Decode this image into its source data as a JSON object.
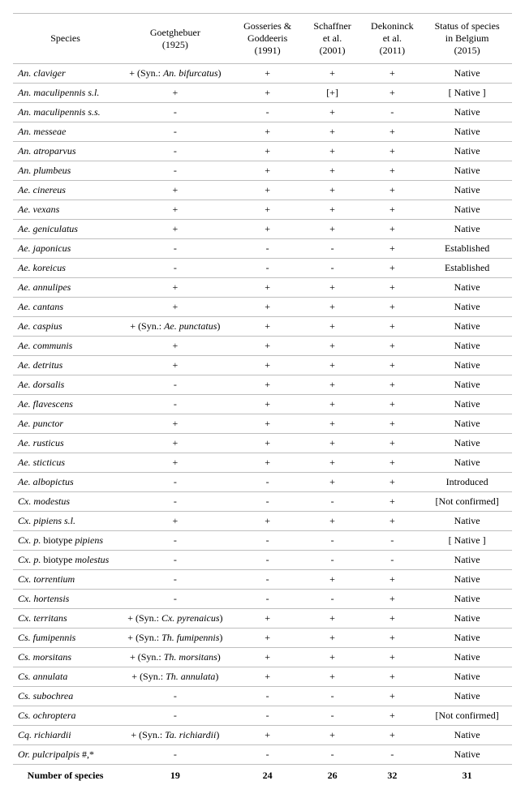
{
  "columns": {
    "species": "Species",
    "goetghebuer_l1": "Goetghebuer",
    "goetghebuer_l2": "(1925)",
    "gosseries_l1": "Gosseries &",
    "gosseries_l2": "Goddeeris",
    "gosseries_l3": "(1991)",
    "schaffner_l1": "Schaffner",
    "schaffner_l2": "et al.",
    "schaffner_l3": "(2001)",
    "dekoninck_l1": "Dekoninck",
    "dekoninck_l2": "et al.",
    "dekoninck_l3": "(2011)",
    "status_l1": "Status of species",
    "status_l2": "in Belgium",
    "status_l3": "(2015)"
  },
  "rows": [
    {
      "species": "An. claviger",
      "goet": "+ (Syn.: An. bifurcatus)",
      "goss": "+",
      "schaf": "+",
      "dekon": "+",
      "status": "Native"
    },
    {
      "species": "An. maculipennis s.l.",
      "goet": "+",
      "goss": "+",
      "schaf": "[+]",
      "dekon": "+",
      "status": "[ Native ]"
    },
    {
      "species": "An. maculipennis s.s.",
      "goet": "-",
      "goss": "-",
      "schaf": "+",
      "dekon": "-",
      "status": "Native"
    },
    {
      "species": "An. messeae",
      "goet": "-",
      "goss": "+",
      "schaf": "+",
      "dekon": "+",
      "status": "Native"
    },
    {
      "species": "An. atroparvus",
      "goet": "-",
      "goss": "+",
      "schaf": "+",
      "dekon": "+",
      "status": "Native"
    },
    {
      "species": "An. plumbeus",
      "goet": "-",
      "goss": "+",
      "schaf": "+",
      "dekon": "+",
      "status": "Native"
    },
    {
      "species": "Ae. cinereus",
      "goet": "+",
      "goss": "+",
      "schaf": "+",
      "dekon": "+",
      "status": "Native"
    },
    {
      "species": "Ae. vexans",
      "goet": "+",
      "goss": "+",
      "schaf": "+",
      "dekon": "+",
      "status": "Native"
    },
    {
      "species": "Ae. geniculatus",
      "goet": "+",
      "goss": "+",
      "schaf": "+",
      "dekon": "+",
      "status": "Native"
    },
    {
      "species": "Ae. japonicus",
      "goet": "-",
      "goss": "-",
      "schaf": "-",
      "dekon": "+",
      "status": "Established"
    },
    {
      "species": "Ae. koreicus",
      "goet": "-",
      "goss": "-",
      "schaf": "-",
      "dekon": "+",
      "status": "Established"
    },
    {
      "species": "Ae. annulipes",
      "goet": "+",
      "goss": "+",
      "schaf": "+",
      "dekon": "+",
      "status": "Native"
    },
    {
      "species": "Ae. cantans",
      "goet": "+",
      "goss": "+",
      "schaf": "+",
      "dekon": "+",
      "status": "Native"
    },
    {
      "species": "Ae. caspius",
      "goet": "+ (Syn.: Ae. punctatus)",
      "goss": "+",
      "schaf": "+",
      "dekon": "+",
      "status": "Native"
    },
    {
      "species": "Ae. communis",
      "goet": "+",
      "goss": "+",
      "schaf": "+",
      "dekon": "+",
      "status": "Native"
    },
    {
      "species": "Ae. detritus",
      "goet": "+",
      "goss": "+",
      "schaf": "+",
      "dekon": "+",
      "status": "Native"
    },
    {
      "species": "Ae. dorsalis",
      "goet": "-",
      "goss": "+",
      "schaf": "+",
      "dekon": "+",
      "status": "Native"
    },
    {
      "species": "Ae. flavescens",
      "goet": "-",
      "goss": "+",
      "schaf": "+",
      "dekon": "+",
      "status": "Native"
    },
    {
      "species": "Ae. punctor",
      "goet": "+",
      "goss": "+",
      "schaf": "+",
      "dekon": "+",
      "status": "Native"
    },
    {
      "species": "Ae. rusticus",
      "goet": "+",
      "goss": "+",
      "schaf": "+",
      "dekon": "+",
      "status": "Native"
    },
    {
      "species": "Ae. sticticus",
      "goet": "+",
      "goss": "+",
      "schaf": "+",
      "dekon": "+",
      "status": "Native"
    },
    {
      "species": "Ae. albopictus",
      "goet": "-",
      "goss": "-",
      "schaf": "+",
      "dekon": "+",
      "status": "Introduced"
    },
    {
      "species": "Cx. modestus",
      "goet": "-",
      "goss": "-",
      "schaf": "-",
      "dekon": "+",
      "status": "[Not confirmed]"
    },
    {
      "species": "Cx. pipiens s.l.",
      "goet": "+",
      "goss": "+",
      "schaf": "+",
      "dekon": "+",
      "status": "Native"
    },
    {
      "species": "Cx. p. biotype pipiens",
      "goet": "-",
      "goss": "-",
      "schaf": "-",
      "dekon": "-",
      "status": "[ Native ]"
    },
    {
      "species": "Cx. p. biotype molestus",
      "goet": "-",
      "goss": "-",
      "schaf": "-",
      "dekon": "-",
      "status": "Native"
    },
    {
      "species": "Cx. torrentium",
      "goet": "-",
      "goss": "-",
      "schaf": "+",
      "dekon": "+",
      "status": "Native"
    },
    {
      "species": "Cx. hortensis",
      "goet": "-",
      "goss": "-",
      "schaf": "-",
      "dekon": "+",
      "status": "Native"
    },
    {
      "species": "Cx. territans",
      "goet": "+ (Syn.: Cx. pyrenaicus)",
      "goss": "+",
      "schaf": "+",
      "dekon": "+",
      "status": "Native"
    },
    {
      "species": "Cs. fumipennis",
      "goet": "+ (Syn.: Th. fumipennis)",
      "goss": "+",
      "schaf": "+",
      "dekon": "+",
      "status": "Native"
    },
    {
      "species": "Cs. morsitans",
      "goet": "+ (Syn.: Th. morsitans)",
      "goss": "+",
      "schaf": "+",
      "dekon": "+",
      "status": "Native"
    },
    {
      "species": "Cs. annulata",
      "goet": "+ (Syn.: Th. annulata)",
      "goss": "+",
      "schaf": "+",
      "dekon": "+",
      "status": "Native"
    },
    {
      "species": "Cs. subochrea",
      "goet": "-",
      "goss": "-",
      "schaf": "-",
      "dekon": "+",
      "status": "Native"
    },
    {
      "species": "Cs. ochroptera",
      "goet": "-",
      "goss": "-",
      "schaf": "-",
      "dekon": "+",
      "status": "[Not confirmed]"
    },
    {
      "species": "Cq. richiardii",
      "goet": "+ (Syn.: Ta. richiardii)",
      "goss": "+",
      "schaf": "+",
      "dekon": "+",
      "status": "Native"
    },
    {
      "species": "Or. pulcripalpis #,*",
      "goet": "-",
      "goss": "-",
      "schaf": "-",
      "dekon": "-",
      "status": "Native"
    }
  ],
  "footer": {
    "label": "Number of species",
    "goet": "19",
    "goss": "24",
    "schaf": "26",
    "dekon": "32",
    "status": "31"
  }
}
